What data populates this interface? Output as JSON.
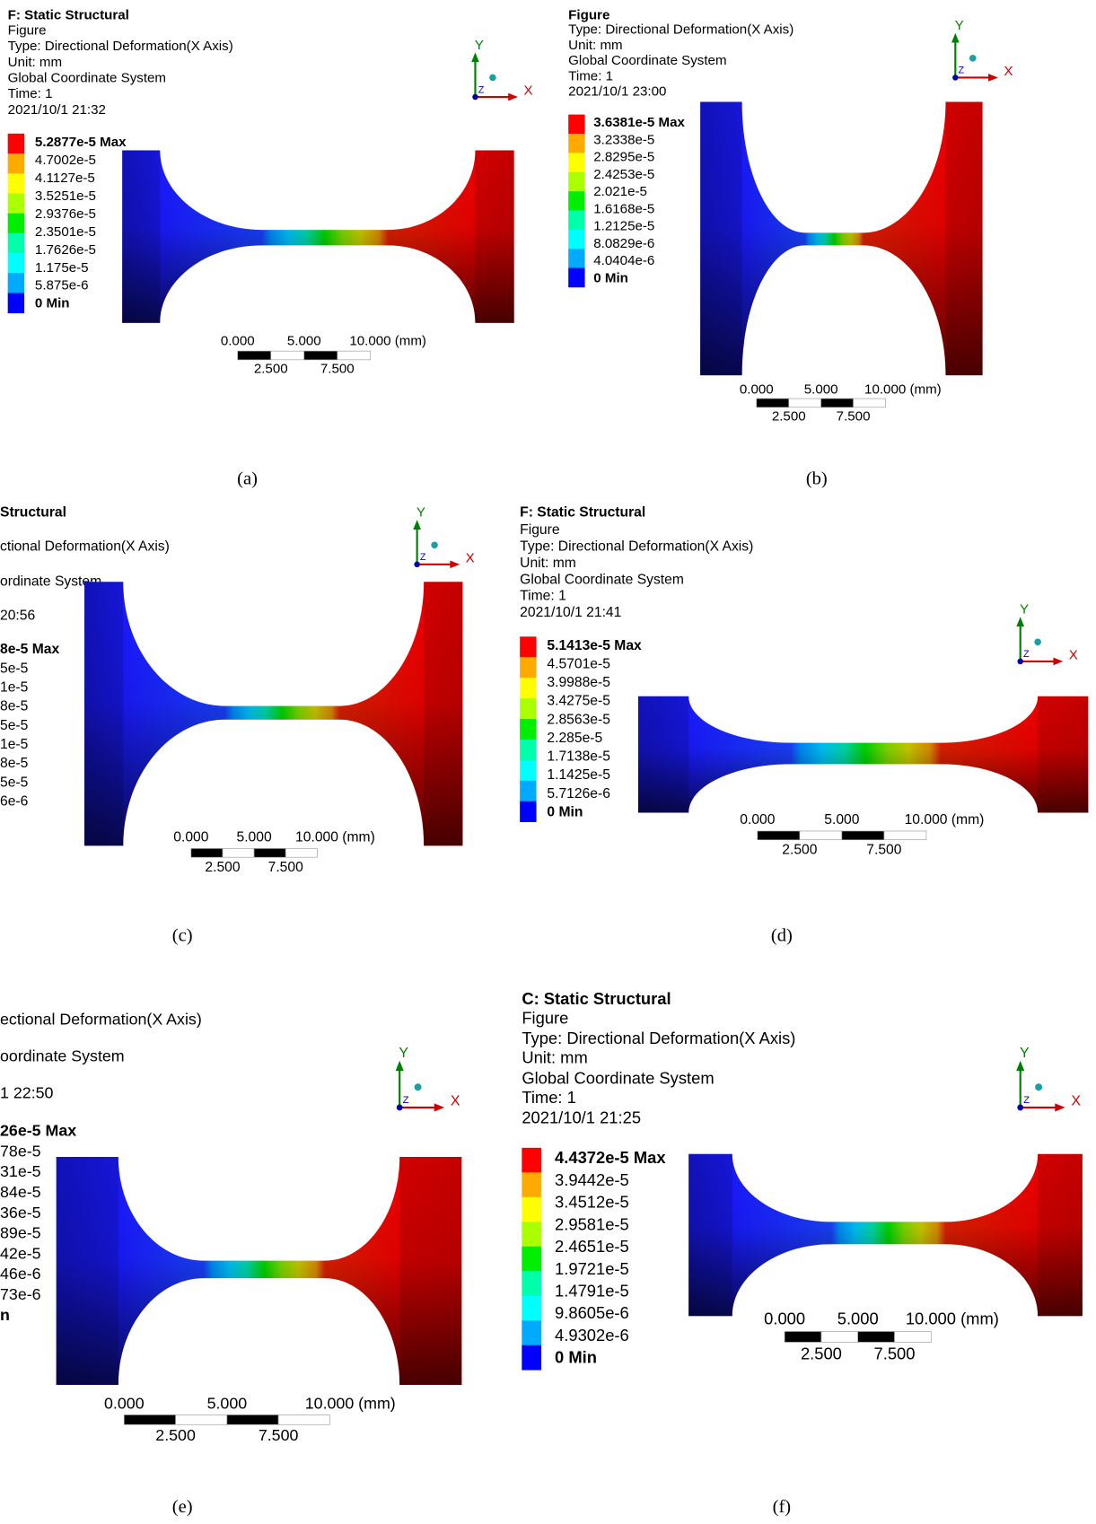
{
  "legend_colors": [
    "#ff0000",
    "#ffaa00",
    "#ffff00",
    "#aaff00",
    "#00ee00",
    "#00ffaa",
    "#00ffff",
    "#00aaff",
    "#0000ff"
  ],
  "triad": {
    "x": "X",
    "y": "Y",
    "z": "Z"
  },
  "scale_bar": {
    "top": [
      "0.000",
      "5.000",
      "10.000 (mm)"
    ],
    "bottom": [
      "2.500",
      "7.500"
    ]
  },
  "panels": [
    {
      "caption": "(a)",
      "header": [
        "F: Static Structural",
        "Figure",
        "Type: Directional Deformation(X Axis)",
        "Unit: mm",
        "Global Coordinate System",
        "Time: 1",
        "2021/10/1 21:32"
      ],
      "legend": [
        "5.2877e-5 Max",
        "4.7002e-5",
        "4.1127e-5",
        "3.5251e-5",
        "2.9376e-5",
        "2.3501e-5",
        "1.7626e-5",
        "1.175e-5",
        "5.875e-6",
        "0 Min"
      ]
    },
    {
      "caption": "(b)",
      "header": [
        "Figure",
        "Type: Directional Deformation(X Axis)",
        "Unit: mm",
        "Global Coordinate System",
        "Time: 1",
        "2021/10/1 23:00"
      ],
      "legend": [
        "3.6381e-5 Max",
        "3.2338e-5",
        "2.8295e-5",
        "2.4253e-5",
        "2.021e-5",
        "1.6168e-5",
        "1.2125e-5",
        "8.0829e-6",
        "4.0404e-6",
        "0 Min"
      ]
    },
    {
      "caption": "(c)",
      "header": [
        "Structural",
        "ctional Deformation(X Axis)",
        "ordinate System",
        "20:56"
      ],
      "legend": [
        "8e-5 Max",
        "5e-5",
        "1e-5",
        "8e-5",
        "5e-5",
        "1e-5",
        "8e-5",
        "5e-5",
        "6e-6"
      ]
    },
    {
      "caption": "(d)",
      "header": [
        "F: Static Structural",
        "Figure",
        "Type: Directional Deformation(X Axis)",
        "Unit: mm",
        "Global Coordinate System",
        "Time: 1",
        "2021/10/1 21:41"
      ],
      "legend": [
        "5.1413e-5 Max",
        "4.5701e-5",
        "3.9988e-5",
        "3.4275e-5",
        "2.8563e-5",
        "2.285e-5",
        "1.7138e-5",
        "1.1425e-5",
        "5.7126e-6",
        "0 Min"
      ]
    },
    {
      "caption": "(e)",
      "header": [
        "ectional Deformation(X Axis)",
        "oordinate System",
        "1 22:50"
      ],
      "legend": [
        "26e-5 Max",
        "78e-5",
        "31e-5",
        "84e-5",
        "36e-5",
        "89e-5",
        "42e-5",
        "46e-6",
        "73e-6",
        "n"
      ]
    },
    {
      "caption": "(f)",
      "header": [
        "C: Static Structural",
        "Figure",
        "Type: Directional Deformation(X Axis)",
        "Unit: mm",
        "Global Coordinate System",
        "Time: 1",
        "2021/10/1 21:25"
      ],
      "legend": [
        "4.4372e-5 Max",
        "3.9442e-5",
        "3.4512e-5",
        "2.9581e-5",
        "2.4651e-5",
        "1.9721e-5",
        "1.4791e-5",
        "9.8605e-6",
        "4.9302e-6",
        "0 Min"
      ]
    }
  ]
}
